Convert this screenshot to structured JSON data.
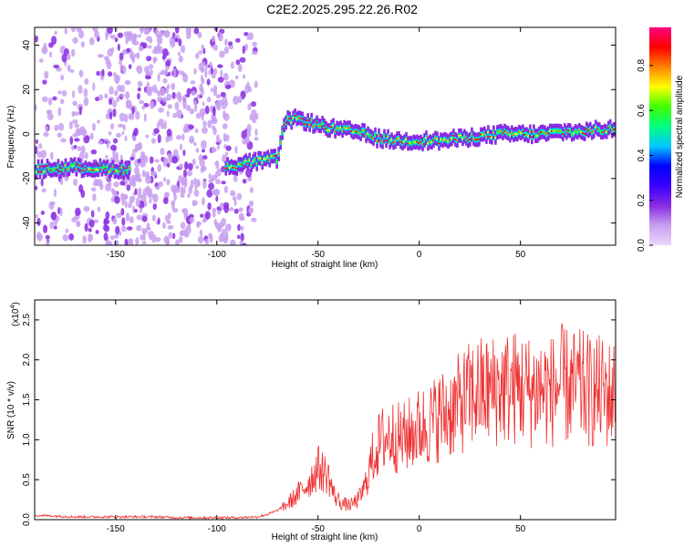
{
  "title": "C2E2.2025.295.22.26.R02",
  "colors": {
    "snr_line": "#ee3333",
    "background": "#ffffff",
    "axis": "#000000"
  },
  "chart_data": [
    {
      "type": "heatmap",
      "xlabel": "Height of straight line (km)",
      "ylabel": "Frequency (Hz)",
      "xlim": [
        -190,
        97
      ],
      "ylim": [
        -50,
        48
      ],
      "x_ticks": [
        -150,
        -100,
        -50,
        0,
        50
      ],
      "x_tick_labels": [
        "-150",
        "-100",
        "-50",
        "0",
        "50"
      ],
      "y_ticks": [
        -40,
        -20,
        0,
        20,
        40
      ],
      "y_tick_labels": [
        "-40",
        "-20",
        "0",
        "20",
        "40"
      ],
      "colorbar": {
        "label": "Normalized spectral amplitude",
        "range": [
          0,
          0.97
        ],
        "ticks": [
          0.0,
          0.2,
          0.4,
          0.6,
          0.8
        ],
        "tick_labels": [
          "0.0",
          "0.2",
          "0.4",
          "0.6",
          "0.8"
        ],
        "stops": [
          "#e8d8f8",
          "#c8a0f0",
          "#8a2be2",
          "#3a00ff",
          "#0000ff",
          "#00c8ff",
          "#00ff80",
          "#40ff00",
          "#ffff00",
          "#ff8000",
          "#ff0000",
          "#ff0080"
        ]
      },
      "signal_trace": {
        "x": [
          -190,
          -170,
          -145,
          -95,
          -85,
          -70,
          -66,
          -60,
          -50,
          -40,
          -30,
          -20,
          -10,
          0,
          10,
          20,
          30,
          40,
          50,
          60,
          70,
          80,
          90,
          97
        ],
        "y": [
          -16,
          -15,
          -16,
          -15,
          -13,
          -11,
          6,
          7,
          4,
          2,
          1,
          -2,
          -3,
          -3,
          -3,
          -2,
          -1,
          0,
          0,
          0,
          1,
          1,
          2,
          2
        ]
      },
      "noise_region_x": [
        -190,
        -80
      ]
    },
    {
      "type": "line",
      "xlabel": "Height of straight line (km)",
      "ylabel": "SNR (10 * v/v)",
      "y_multiplier": "(x10",
      "y_exponent": "4",
      "y_multiplier_close": ")",
      "xlim": [
        -190,
        97
      ],
      "ylim": [
        0,
        2.75
      ],
      "x_ticks": [
        -150,
        -100,
        -50,
        0,
        50
      ],
      "x_tick_labels": [
        "-150",
        "-100",
        "-50",
        "0",
        "50"
      ],
      "y_ticks": [
        0.0,
        0.5,
        1.0,
        1.5,
        2.0,
        2.5
      ],
      "y_tick_labels": [
        "0.0",
        "0.5",
        "1.0",
        "1.5",
        "2.0",
        "2.5"
      ],
      "series": [
        {
          "name": "SNR",
          "x": [
            -190,
            -180,
            -170,
            -160,
            -150,
            -140,
            -130,
            -120,
            -110,
            -100,
            -90,
            -80,
            -75,
            -70,
            -65,
            -60,
            -55,
            -50,
            -45,
            -42,
            -38,
            -34,
            -30,
            -27,
            -24,
            -21,
            -18,
            -15,
            -12,
            -9,
            -6,
            -3,
            0,
            5,
            10,
            15,
            20,
            25,
            30,
            35,
            40,
            45,
            50,
            55,
            60,
            65,
            70,
            75,
            80,
            85,
            90,
            95,
            97
          ],
          "y": [
            0.04,
            0.03,
            0.02,
            0.02,
            0.02,
            0.02,
            0.02,
            0.01,
            0.01,
            0.01,
            0.01,
            0.02,
            0.05,
            0.1,
            0.2,
            0.32,
            0.45,
            0.65,
            0.55,
            0.3,
            0.2,
            0.18,
            0.25,
            0.4,
            0.7,
            0.9,
            1.0,
            1.05,
            1.05,
            1.0,
            1.05,
            1.1,
            1.15,
            1.2,
            1.3,
            1.35,
            1.45,
            1.55,
            1.6,
            1.6,
            1.65,
            1.65,
            1.65,
            1.6,
            1.65,
            1.6,
            1.7,
            1.65,
            1.65,
            1.6,
            1.6,
            1.55,
            1.6
          ]
        }
      ]
    }
  ]
}
